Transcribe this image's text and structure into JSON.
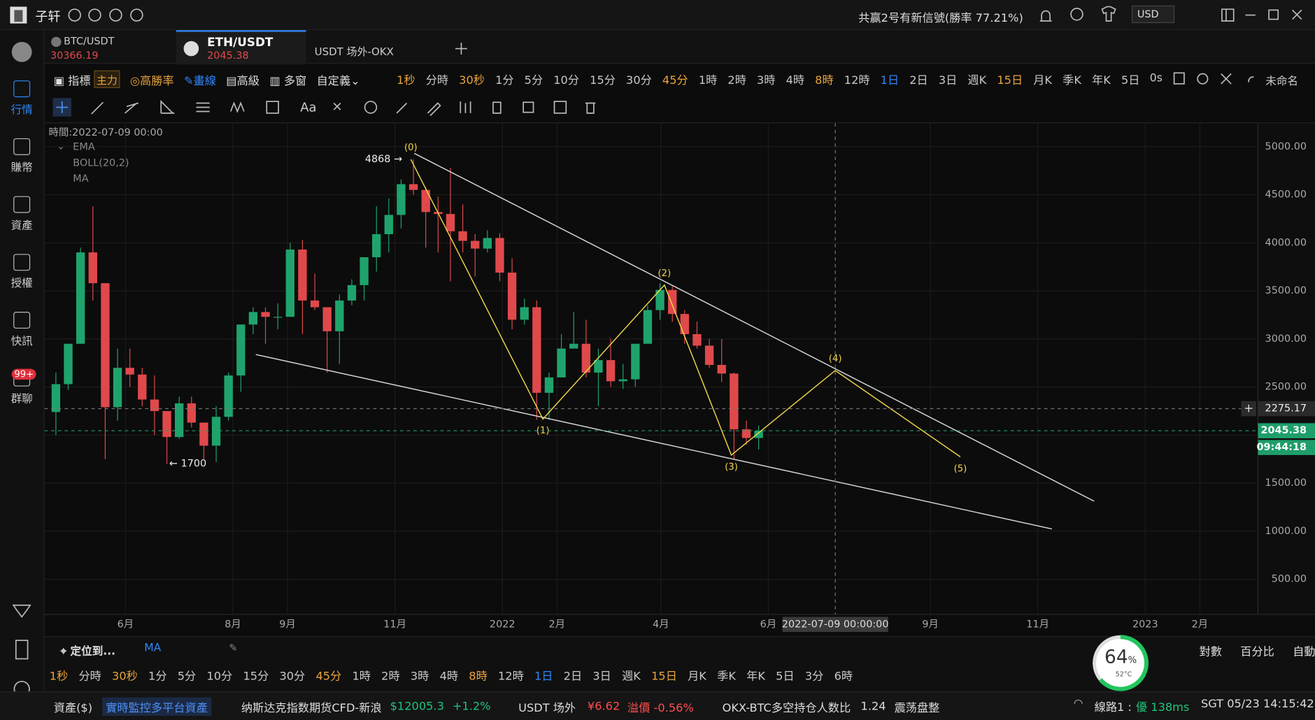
{
  "title_bar": {
    "app_name": "子轩",
    "notice": "共赢2号有新信號(勝率 77.21%)",
    "currency": "USD"
  },
  "sidebar": {
    "items": [
      "行情",
      "賺幣",
      "資產",
      "授權",
      "快訊",
      "群聊"
    ],
    "active": "行情",
    "badge": "99+"
  },
  "tabs": [
    {
      "symbol": "BTC/USDT",
      "price": 30366.19
    },
    {
      "symbol": "ETH/USDT",
      "price": 2045.38
    },
    {
      "symbol": "USDT 场外-OKX"
    }
  ],
  "toolbar": {
    "left": [
      "指標",
      "主力",
      "高勝率",
      "畫線",
      "高級",
      "多窗",
      "自定義"
    ],
    "timeframes": [
      {
        "label": "1秒",
        "color": "#e8a33d"
      },
      {
        "label": "分時",
        "color": "#c8c8c8"
      },
      {
        "label": "30秒",
        "color": "#e8a33d"
      },
      {
        "label": "1分",
        "color": "#c8c8c8"
      },
      {
        "label": "5分",
        "color": "#c8c8c8"
      },
      {
        "label": "10分",
        "color": "#c8c8c8"
      },
      {
        "label": "15分",
        "color": "#c8c8c8"
      },
      {
        "label": "30分",
        "color": "#c8c8c8"
      },
      {
        "label": "45分",
        "color": "#e8a33d"
      },
      {
        "label": "1時",
        "color": "#c8c8c8"
      },
      {
        "label": "2時",
        "color": "#c8c8c8"
      },
      {
        "label": "3時",
        "color": "#c8c8c8"
      },
      {
        "label": "4時",
        "color": "#c8c8c8"
      },
      {
        "label": "8時",
        "color": "#e8a33d"
      },
      {
        "label": "12時",
        "color": "#c8c8c8"
      },
      {
        "label": "1日",
        "color": "#2f86f6"
      },
      {
        "label": "2日",
        "color": "#c8c8c8"
      },
      {
        "label": "3日",
        "color": "#c8c8c8"
      },
      {
        "label": "週K",
        "color": "#c8c8c8"
      },
      {
        "label": "15日",
        "color": "#e8a33d"
      },
      {
        "label": "月K",
        "color": "#c8c8c8"
      },
      {
        "label": "季K",
        "color": "#c8c8c8"
      },
      {
        "label": "年K",
        "color": "#c8c8c8"
      },
      {
        "label": "5日",
        "color": "#c8c8c8"
      }
    ],
    "countdown_mode": "0s",
    "layout_name": "未命名",
    "text_tool": "Aa"
  },
  "legend": {
    "time": "時間:2022-07-09 00:00",
    "indicators": [
      "EMA",
      "BOLL(20,2)",
      "MA"
    ]
  },
  "chart_data": {
    "type": "candlestick",
    "up_color": "#1fa36c",
    "down_color": "#e0494b",
    "grid": true,
    "x": [
      "2021-04-19",
      "2021-04-26",
      "2021-05-03",
      "2021-05-10",
      "2021-05-17",
      "2021-05-24",
      "2021-05-31",
      "2021-06-07",
      "2021-06-14",
      "2021-06-21",
      "2021-06-28",
      "2021-07-05",
      "2021-07-12",
      "2021-07-19",
      "2021-07-26",
      "2021-08-02",
      "2021-08-09",
      "2021-08-16",
      "2021-08-23",
      "2021-08-30",
      "2021-09-06",
      "2021-09-13",
      "2021-09-20",
      "2021-09-27",
      "2021-10-04",
      "2021-10-11",
      "2021-10-18",
      "2021-10-25",
      "2021-11-01",
      "2021-11-08",
      "2021-11-15",
      "2021-11-22",
      "2021-11-29",
      "2021-12-06",
      "2021-12-13",
      "2021-12-20",
      "2021-12-27",
      "2022-01-03",
      "2022-01-10",
      "2022-01-17",
      "2022-01-24",
      "2022-01-31",
      "2022-02-07",
      "2022-02-14",
      "2022-02-21",
      "2022-02-28",
      "2022-03-07",
      "2022-03-14",
      "2022-03-21",
      "2022-03-28",
      "2022-04-04",
      "2022-04-11",
      "2022-04-18",
      "2022-04-25",
      "2022-05-02",
      "2022-05-09",
      "2022-05-16",
      "2022-05-23"
    ],
    "open": [
      2240,
      2530,
      2950,
      3900,
      3580,
      2290,
      2700,
      2630,
      2370,
      2250,
      1980,
      2330,
      2130,
      1890,
      2190,
      2620,
      3150,
      3280,
      3230,
      3230,
      3930,
      3400,
      3330,
      3080,
      3400,
      3560,
      3850,
      4090,
      4290,
      4610,
      4550,
      4320,
      4300,
      4120,
      4020,
      3940,
      4050,
      3690,
      3200,
      3330,
      2440,
      2600,
      2900,
      2950,
      2650,
      2780,
      2560,
      2580,
      2950,
      3300,
      3510,
      3260,
      3050,
      2930,
      2730,
      2640,
      2060,
      1970
    ],
    "high": [
      2650,
      2950,
      3950,
      4380,
      3580,
      2900,
      2900,
      2700,
      2620,
      2250,
      2400,
      2400,
      2130,
      2300,
      2650,
      3150,
      3330,
      3330,
      3370,
      4000,
      4030,
      3680,
      3330,
      3460,
      3620,
      3850,
      4380,
      4460,
      4660,
      4868,
      4580,
      4480,
      4780,
      4400,
      4090,
      4130,
      4100,
      3840,
      3420,
      3400,
      2650,
      3050,
      3280,
      3200,
      2900,
      3000,
      2740,
      2950,
      3350,
      3580,
      3550,
      3300,
      3180,
      3000,
      3000,
      2650,
      2150,
      2100
    ],
    "low": [
      2000,
      2470,
      2950,
      3400,
      1750,
      2150,
      2500,
      2300,
      2000,
      1700,
      1960,
      2080,
      1750,
      1720,
      2150,
      2450,
      3050,
      2950,
      3100,
      3230,
      3050,
      3300,
      2650,
      2740,
      3350,
      3400,
      3700,
      3900,
      4150,
      4500,
      3950,
      3900,
      3600,
      3900,
      3650,
      3900,
      3600,
      3100,
      3150,
      2160,
      2159,
      2600,
      2900,
      2600,
      2300,
      2500,
      2480,
      2500,
      2950,
      3200,
      3180,
      2950,
      2900,
      2700,
      2550,
      1750,
      1900,
      1850
    ],
    "close": [
      2530,
      2950,
      3900,
      3580,
      2290,
      2700,
      2630,
      2370,
      2250,
      1980,
      2330,
      2130,
      1890,
      2190,
      2620,
      3150,
      3280,
      3230,
      3230,
      3930,
      3400,
      3330,
      3080,
      3400,
      3560,
      3850,
      4090,
      4290,
      4610,
      4550,
      4320,
      4300,
      4120,
      4020,
      3940,
      4050,
      3690,
      3200,
      3330,
      2440,
      2600,
      2900,
      2950,
      2650,
      2780,
      2560,
      2580,
      2950,
      3300,
      3510,
      3260,
      3050,
      2930,
      2730,
      2640,
      2060,
      1970,
      2045.38
    ],
    "xlim": [
      "2021-04-16",
      "2023-03-06"
    ],
    "xticks": [
      {
        "value": "2021-06-01",
        "label": "6月"
      },
      {
        "value": "2021-08-01",
        "label": "8月"
      },
      {
        "value": "2021-09-01",
        "label": "9月"
      },
      {
        "value": "2021-11-01",
        "label": "11月"
      },
      {
        "value": "2022-01-01",
        "label": "2022"
      },
      {
        "value": "2022-02-01",
        "label": "2月"
      },
      {
        "value": "2022-04-01",
        "label": "4月"
      },
      {
        "value": "2022-06-01",
        "label": "6月"
      },
      {
        "value": "2022-09-01",
        "label": "9月"
      },
      {
        "value": "2022-11-01",
        "label": "11月"
      },
      {
        "value": "2023-01-01",
        "label": "2023"
      },
      {
        "value": "2023-02-01",
        "label": "2月"
      }
    ],
    "ylim": [
      135,
      5244
    ],
    "yticks": [
      {
        "value": 500,
        "label": "500.00"
      },
      {
        "value": 1000,
        "label": "1000.00"
      },
      {
        "value": 1500,
        "label": "1500.00"
      },
      {
        "value": 2000,
        "label": "2000.00"
      },
      {
        "value": 2500,
        "label": "2500.00"
      },
      {
        "value": 3000,
        "label": "3000.00"
      },
      {
        "value": 3500,
        "label": "3500.00"
      },
      {
        "value": 4000,
        "label": "4000.00"
      },
      {
        "value": 4500,
        "label": "4500.00"
      },
      {
        "value": 5000,
        "label": "5000.00"
      }
    ],
    "wave_color": "#f0d64a",
    "waves": [
      {
        "label": "(0)",
        "x": "2021-11-10",
        "price": 4868,
        "side": "above"
      },
      {
        "label": "(1)",
        "x": "2022-01-24",
        "price": 2167,
        "side": "below"
      },
      {
        "label": "(2)",
        "x": "2022-04-03",
        "price": 3561,
        "side": "above"
      },
      {
        "label": "(3)",
        "x": "2022-05-11",
        "price": 1792,
        "side": "below"
      },
      {
        "label": "(4)",
        "x": "2022-07-09",
        "price": 2672,
        "side": "above"
      },
      {
        "label": "(5)",
        "x": "2022-09-18",
        "price": 1774,
        "side": "below"
      }
    ],
    "trendline_color": "#d9d9d9",
    "trendlines": [
      {
        "x": [
          "2021-11-12",
          "2022-12-03"
        ],
        "y": [
          4930,
          1312
        ]
      },
      {
        "x": [
          "2021-08-14",
          "2022-11-09"
        ],
        "y": [
          2838,
          1024
        ]
      }
    ],
    "annotations": [
      {
        "text": "4868 →",
        "x": "2021-11-08",
        "price": 4868,
        "side": "left"
      },
      {
        "text": "← 1700",
        "x": "2021-06-23",
        "price": 1700,
        "side": "right"
      }
    ],
    "crosshair": {
      "x": "2022-07-09",
      "x_label": "2022-07-09 00:00:00",
      "price": 2275.17
    },
    "last_price": {
      "price": 2045.38,
      "countdown": "09:44:18",
      "color": "#1e9e6a"
    }
  },
  "bottom_bar": {
    "locate": "定位到...",
    "indicator": "MA",
    "scale_modes": [
      "對數",
      "百分比",
      "自動"
    ],
    "timeframes": [
      {
        "label": "1秒",
        "color": "#e8a33d"
      },
      {
        "label": "分時",
        "color": "#c8c8c8"
      },
      {
        "label": "30秒",
        "color": "#e8a33d"
      },
      {
        "label": "1分",
        "color": "#c8c8c8"
      },
      {
        "label": "5分",
        "color": "#c8c8c8"
      },
      {
        "label": "10分",
        "color": "#c8c8c8"
      },
      {
        "label": "15分",
        "color": "#c8c8c8"
      },
      {
        "label": "30分",
        "color": "#c8c8c8"
      },
      {
        "label": "45分",
        "color": "#e8a33d"
      },
      {
        "label": "1時",
        "color": "#c8c8c8"
      },
      {
        "label": "2時",
        "color": "#c8c8c8"
      },
      {
        "label": "3時",
        "color": "#c8c8c8"
      },
      {
        "label": "4時",
        "color": "#c8c8c8"
      },
      {
        "label": "8時",
        "color": "#e8a33d"
      },
      {
        "label": "12時",
        "color": "#c8c8c8"
      },
      {
        "label": "1日",
        "color": "#2f86f6"
      },
      {
        "label": "2日",
        "color": "#c8c8c8"
      },
      {
        "label": "3日",
        "color": "#c8c8c8"
      },
      {
        "label": "週K",
        "color": "#c8c8c8"
      },
      {
        "label": "15日",
        "color": "#e8a33d"
      },
      {
        "label": "月K",
        "color": "#c8c8c8"
      },
      {
        "label": "季K",
        "color": "#c8c8c8"
      },
      {
        "label": "年K",
        "color": "#c8c8c8"
      },
      {
        "label": "5日",
        "color": "#c8c8c8"
      },
      {
        "label": "3分",
        "color": "#c8c8c8"
      },
      {
        "label": "6時",
        "color": "#c8c8c8"
      }
    ]
  },
  "gauge": {
    "value": 64,
    "unit": "%",
    "temperature": "52°C"
  },
  "status_bar": {
    "assets": "資產($)",
    "monitor": "實時監控多平台資產",
    "ticker_name": "纳斯达克指数期货CFD-新浪",
    "ticker_price": "$12005.3",
    "ticker_change": "+1.2%",
    "otc_name": "USDT 场外",
    "otc_price": "¥6.62",
    "otc_premium": "溢價 -0.56%",
    "ratio_name": "OKX-BTC多空持仓人数比",
    "ratio_value": 1.24,
    "ratio_state": "震荡盘整",
    "line": "線路1 :",
    "line_quality": "優 138ms",
    "clock": "SGT  05/23 14:15:42"
  }
}
